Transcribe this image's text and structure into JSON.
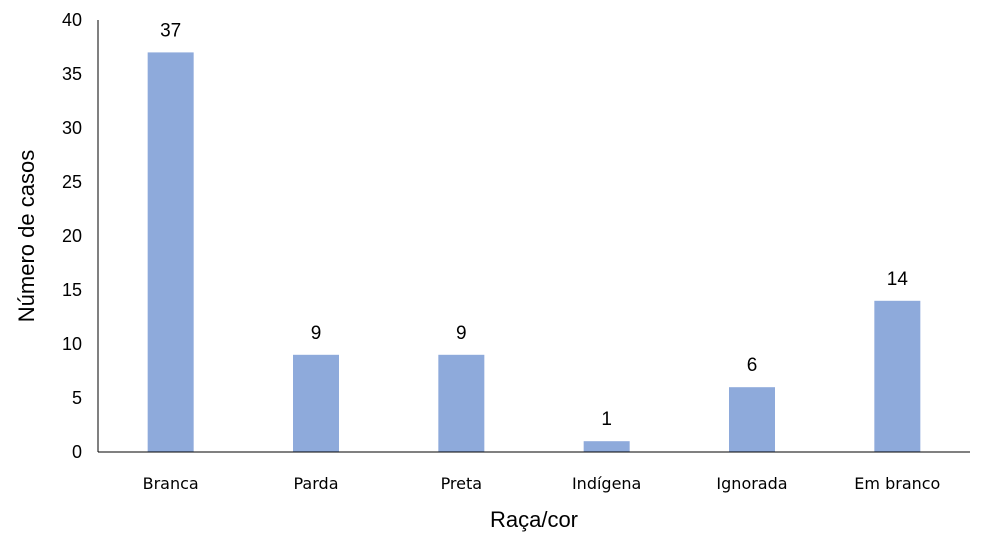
{
  "chart_data": {
    "type": "bar",
    "title": "",
    "xlabel": "Raça/cor",
    "ylabel": "Número de casos",
    "categories": [
      "Branca",
      "Parda",
      "Preta",
      "Indígena",
      "Ignorada",
      "Em branco"
    ],
    "values": [
      37,
      9,
      9,
      1,
      6,
      14
    ],
    "ylim": [
      0,
      40
    ],
    "yticks": [
      0,
      5,
      10,
      15,
      20,
      25,
      30,
      35,
      40
    ],
    "bar_color": "#8eaadb",
    "grid": false,
    "data_labels": true
  }
}
